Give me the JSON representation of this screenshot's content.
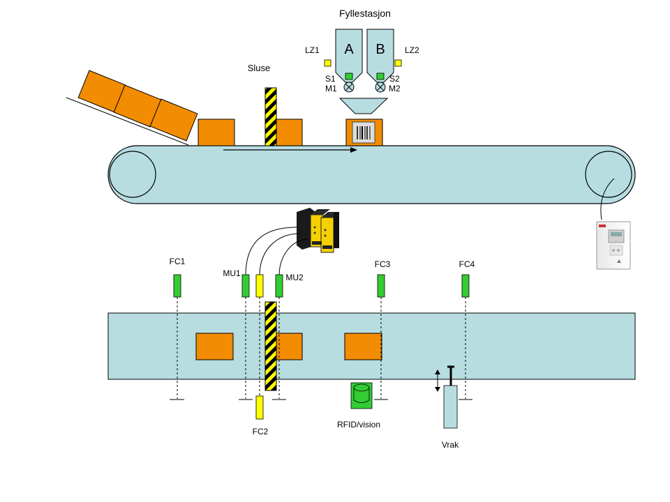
{
  "labels": {
    "title": "Fyllestasjon",
    "sluse": "Sluse",
    "lz1": "LZ1",
    "lz2": "LZ2",
    "hopper_a": "A",
    "hopper_b": "B",
    "s1": "S1",
    "m1": "M1",
    "s2": "S2",
    "m2": "M2",
    "fc1": "FC1",
    "fc2": "FC2",
    "fc3": "FC3",
    "fc4": "FC4",
    "mu1": "MU1",
    "mu2": "MU2",
    "rfid": "RFID/vision",
    "vrak": "Vrak"
  },
  "colors": {
    "box": "#f28c00",
    "belt": "#b7dde0",
    "sensor_green": "#33cc33",
    "sensor_yellow": "#ffff00",
    "hopper": "#b7dde0"
  }
}
